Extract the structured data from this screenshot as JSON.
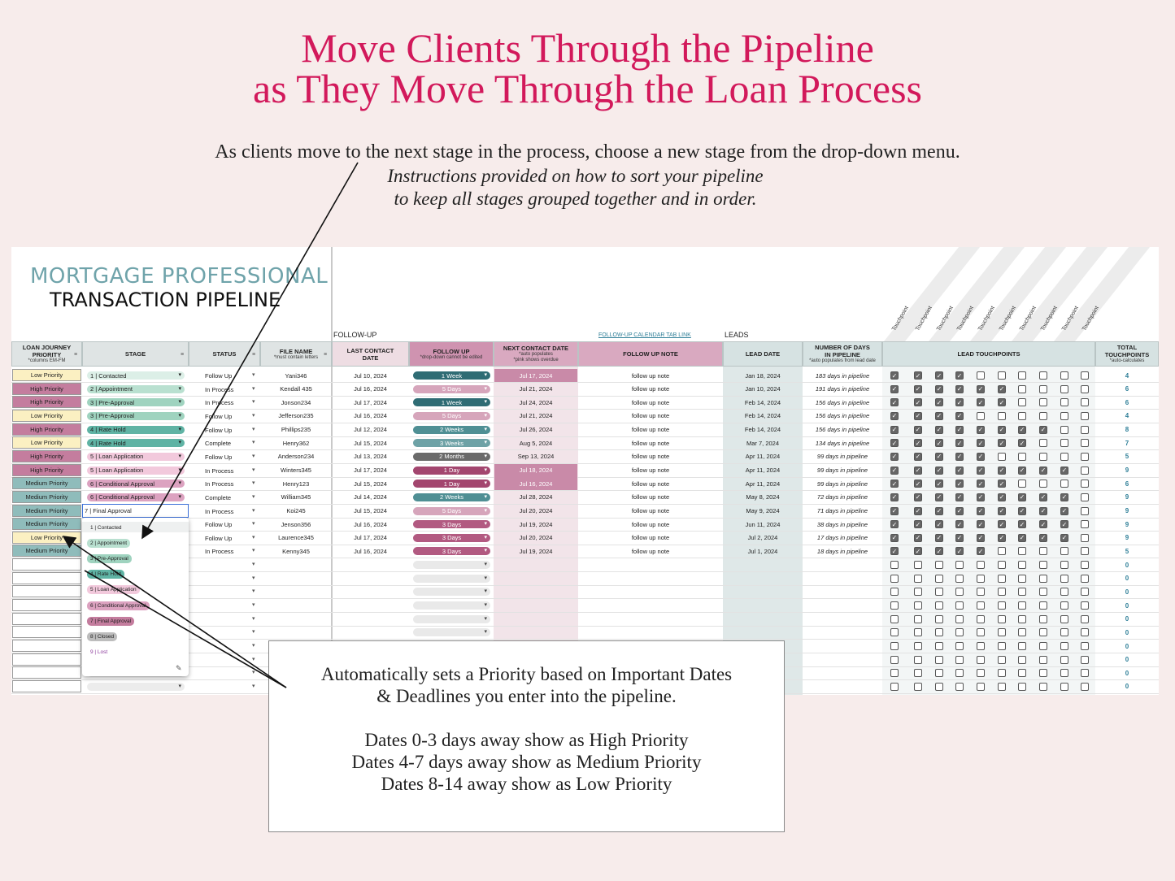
{
  "header": {
    "title_lines": [
      "Move Clients Through the Pipeline",
      "as They Move Through the Loan Process"
    ],
    "intro": "As clients move to the next stage in the process, choose a new stage from the drop-down menu.",
    "intro_italic": [
      "Instructions provided on how to sort your pipeline",
      "to keep all stages grouped together and in order."
    ]
  },
  "sheet": {
    "brand": [
      "MORTGAGE PROFESSIONAL",
      "TRANSACTION PIPELINE"
    ],
    "sections": {
      "follow_up": "FOLLOW-UP",
      "calendar_link": "FOLLOW-UP CALENDAR TAB LINK",
      "leads": "LEADS"
    },
    "touchpoint_labels": [
      "Touchpoint",
      "Touchpoint",
      "Touchpoint",
      "Touchpoint",
      "Touchpoint",
      "Touchpoint",
      "Touchpoint",
      "Touchpoint",
      "Touchpoint",
      "Touchpoint"
    ],
    "columns": [
      {
        "label": "LOAN JOURNEY PRIORITY",
        "sub": [
          "*columns EM-FM"
        ],
        "color": "#dfe4e4"
      },
      {
        "label": "STAGE",
        "sub": [],
        "color": "#dfe4e4"
      },
      {
        "label": "STATUS",
        "sub": [],
        "color": "#dfe4e4"
      },
      {
        "label": "FILE NAME",
        "sub": [
          "*must contain letters"
        ],
        "color": "#dfe4e4"
      },
      {
        "label": "LAST CONTACT DATE",
        "sub": [],
        "color": "#eedde3"
      },
      {
        "label": "FOLLOW UP",
        "sub": [
          "*drop-down cannot be edited"
        ],
        "color": "#cf93b0"
      },
      {
        "label": "NEXT CONTACT DATE",
        "sub": [
          "*auto populates",
          "*pink shows overdue"
        ],
        "color": "#d9a9c0"
      },
      {
        "label": "FOLLOW UP NOTE",
        "sub": [],
        "color": "#d9a9c0"
      },
      {
        "label": "LEAD DATE",
        "sub": [],
        "color": "#d6e2e2"
      },
      {
        "label": "NUMBER OF DAYS IN PIPELINE",
        "sub": [
          "*auto populates from lead date"
        ],
        "color": "#d6e2e2"
      },
      {
        "label": "LEAD TOUCHPOINTS",
        "sub": [],
        "color": "#d6e2e2"
      },
      {
        "label": "TOTAL TOUCHPOINTS",
        "sub": [
          "*auto-calculates"
        ],
        "color": "#d6e2e2"
      }
    ],
    "palette": {
      "priority": {
        "Low Priority": "#fbf0c2",
        "High Priority": "#c47d9e",
        "Medium Priority": "#8fbcbb"
      },
      "stage": {
        "1 | Contacted": "#dcefe7",
        "2 | Appointment": "#b9e0d0",
        "3 | Pre-Approval": "#9fd3bf",
        "4 | Rate Hold": "#5fb3a4",
        "5 | Loan Application": "#f2c9dc",
        "6 | Conditional Approval": "#dca2c0",
        "7 | Final Approval": "#c47d9e",
        "8 | Closed": "#bdbdbd",
        "9 | Lost": "#8b3a9b"
      },
      "follow": {
        "1 Week": "#2f6c74",
        "5 Days": "#d6a5bb",
        "2 Weeks": "#4f8f94",
        "3 Weeks": "#6ea2a6",
        "2 Months": "#6a6a6a",
        "1 Day": "#a3466f",
        "3 Days": "#b25a81"
      }
    },
    "rows": [
      {
        "priority": "Low Priority",
        "stage": "1 | Contacted",
        "status": "Follow Up",
        "file": "Yani346",
        "last": "Jul 10, 2024",
        "follow": "1 Week",
        "next": "Jul 17, 2024",
        "overdue": true,
        "note": "follow up note",
        "lead": "Jan 18, 2024",
        "days": "183 days in pipeline",
        "checks": [
          true,
          true,
          true,
          true,
          false,
          false,
          false,
          false,
          false,
          false
        ],
        "total": 4
      },
      {
        "priority": "High Priority",
        "stage": "2 | Appointment",
        "status": "In Process",
        "file": "Kendall 435",
        "last": "Jul 16, 2024",
        "follow": "5 Days",
        "next": "Jul 21, 2024",
        "overdue": false,
        "note": "follow up note",
        "lead": "Jan 10, 2024",
        "days": "191 days in pipeline",
        "checks": [
          true,
          true,
          true,
          true,
          true,
          true,
          false,
          false,
          false,
          false
        ],
        "total": 6
      },
      {
        "priority": "High Priority",
        "stage": "3 | Pre-Approval",
        "status": "In Process",
        "file": "Jonson234",
        "last": "Jul 17, 2024",
        "follow": "1 Week",
        "next": "Jul 24, 2024",
        "overdue": false,
        "note": "follow up note",
        "lead": "Feb 14, 2024",
        "days": "156 days in pipeline",
        "checks": [
          true,
          true,
          true,
          true,
          true,
          true,
          false,
          false,
          false,
          false
        ],
        "total": 6
      },
      {
        "priority": "Low Priority",
        "stage": "3 | Pre-Approval",
        "status": "Follow Up",
        "file": "Jefferson235",
        "last": "Jul 16, 2024",
        "follow": "5 Days",
        "next": "Jul 21, 2024",
        "overdue": false,
        "note": "follow up note",
        "lead": "Feb 14, 2024",
        "days": "156 days in pipeline",
        "checks": [
          true,
          true,
          true,
          true,
          false,
          false,
          false,
          false,
          false,
          false
        ],
        "total": 4
      },
      {
        "priority": "High Priority",
        "stage": "4 | Rate Hold",
        "status": "Follow Up",
        "file": "Phillips235",
        "last": "Jul 12, 2024",
        "follow": "2 Weeks",
        "next": "Jul 26, 2024",
        "overdue": false,
        "note": "follow up note",
        "lead": "Feb 14, 2024",
        "days": "156 days in pipeline",
        "checks": [
          true,
          true,
          true,
          true,
          true,
          true,
          true,
          true,
          false,
          false
        ],
        "total": 8
      },
      {
        "priority": "Low Priority",
        "stage": "4 | Rate Hold",
        "status": "Complete",
        "file": "Henry362",
        "last": "Jul 15, 2024",
        "follow": "3 Weeks",
        "next": "Aug 5, 2024",
        "overdue": false,
        "note": "follow up note",
        "lead": "Mar 7, 2024",
        "days": "134 days in pipeline",
        "checks": [
          true,
          true,
          true,
          true,
          true,
          true,
          true,
          false,
          false,
          false
        ],
        "total": 7
      },
      {
        "priority": "High Priority",
        "stage": "5 | Loan Application",
        "status": "Follow Up",
        "file": "Anderson234",
        "last": "Jul 13, 2024",
        "follow": "2 Months",
        "next": "Sep 13, 2024",
        "overdue": false,
        "note": "follow up note",
        "lead": "Apr 11, 2024",
        "days": "99 days in pipeline",
        "checks": [
          true,
          true,
          true,
          true,
          true,
          false,
          false,
          false,
          false,
          false
        ],
        "total": 5
      },
      {
        "priority": "High Priority",
        "stage": "5 | Loan Application",
        "status": "In Process",
        "file": "Winters345",
        "last": "Jul 17, 2024",
        "follow": "1 Day",
        "next": "Jul 18, 2024",
        "overdue": true,
        "note": "follow up note",
        "lead": "Apr 11, 2024",
        "days": "99 days in pipeline",
        "checks": [
          true,
          true,
          true,
          true,
          true,
          true,
          true,
          true,
          true,
          false
        ],
        "total": 9
      },
      {
        "priority": "Medium Priority",
        "stage": "6 | Conditional Approval",
        "status": "In Process",
        "file": "Henry123",
        "last": "Jul 15, 2024",
        "follow": "1 Day",
        "next": "Jul 16, 2024",
        "overdue": true,
        "note": "follow up note",
        "lead": "Apr 11, 2024",
        "days": "99 days in pipeline",
        "checks": [
          true,
          true,
          true,
          true,
          true,
          true,
          false,
          false,
          false,
          false
        ],
        "total": 6
      },
      {
        "priority": "Medium Priority",
        "stage": "6 | Conditional Approval",
        "status": "Complete",
        "file": "William345",
        "last": "Jul 14, 2024",
        "follow": "2 Weeks",
        "next": "Jul 28, 2024",
        "overdue": false,
        "note": "follow up note",
        "lead": "May 8, 2024",
        "days": "72 days in pipeline",
        "checks": [
          true,
          true,
          true,
          true,
          true,
          true,
          true,
          true,
          true,
          false
        ],
        "total": 9
      },
      {
        "priority": "Medium Priority",
        "stage": "7 | Final Approval",
        "editing": true,
        "status": "In Process",
        "file": "Koi245",
        "last": "Jul 15, 2024",
        "follow": "5 Days",
        "next": "Jul 20, 2024",
        "overdue": false,
        "note": "follow up note",
        "lead": "May 9, 2024",
        "days": "71 days in pipeline",
        "checks": [
          true,
          true,
          true,
          true,
          true,
          true,
          true,
          true,
          true,
          false
        ],
        "total": 9
      },
      {
        "priority": "Medium Priority",
        "stage": null,
        "status": "Follow Up",
        "file": "Jenson356",
        "last": "Jul 16, 2024",
        "follow": "3 Days",
        "next": "Jul 19, 2024",
        "overdue": false,
        "note": "follow up note",
        "lead": "Jun 11, 2024",
        "days": "38 days in pipeline",
        "checks": [
          true,
          true,
          true,
          true,
          true,
          true,
          true,
          true,
          true,
          false
        ],
        "total": 9
      },
      {
        "priority": "Low Priority",
        "stage": null,
        "status": "Follow Up",
        "file": "Laurence345",
        "last": "Jul 17, 2024",
        "follow": "3 Days",
        "next": "Jul 20, 2024",
        "overdue": false,
        "note": "follow up note",
        "lead": "Jul 2, 2024",
        "days": "17 days in pipeline",
        "checks": [
          true,
          true,
          true,
          true,
          true,
          true,
          true,
          true,
          true,
          false
        ],
        "total": 9
      },
      {
        "priority": "Medium Priority",
        "stage": null,
        "status": "In Process",
        "file": "Kenny345",
        "last": "Jul 16, 2024",
        "follow": "3 Days",
        "next": "Jul 19, 2024",
        "overdue": false,
        "note": "follow up note",
        "lead": "Jul 1, 2024",
        "days": "18 days in pipeline",
        "checks": [
          true,
          true,
          true,
          true,
          true,
          false,
          false,
          false,
          false,
          false
        ],
        "total": 5
      },
      {
        "checks": [
          false,
          false,
          false,
          false,
          false,
          false,
          false,
          false,
          false,
          false
        ],
        "total": 0
      },
      {
        "checks": [
          false,
          false,
          false,
          false,
          false,
          false,
          false,
          false,
          false,
          false
        ],
        "total": 0
      },
      {
        "checks": [
          false,
          false,
          false,
          false,
          false,
          false,
          false,
          false,
          false,
          false
        ],
        "total": 0
      },
      {
        "checks": [
          false,
          false,
          false,
          false,
          false,
          false,
          false,
          false,
          false,
          false
        ],
        "total": 0
      },
      {
        "checks": [
          false,
          false,
          false,
          false,
          false,
          false,
          false,
          false,
          false,
          false
        ],
        "total": 0
      },
      {
        "checks": [
          false,
          false,
          false,
          false,
          false,
          false,
          false,
          false,
          false,
          false
        ],
        "total": 0
      },
      {
        "checks": [
          false,
          false,
          false,
          false,
          false,
          false,
          false,
          false,
          false,
          false
        ],
        "total": 0
      },
      {
        "checks": [
          false,
          false,
          false,
          false,
          false,
          false,
          false,
          false,
          false,
          false
        ],
        "total": 0
      },
      {
        "checks": [
          false,
          false,
          false,
          false,
          false,
          false,
          false,
          false,
          false,
          false
        ],
        "total": 0
      },
      {
        "checks": [
          false,
          false,
          false,
          false,
          false,
          false,
          false,
          false,
          false,
          false
        ],
        "total": 0
      }
    ],
    "dropdown": [
      "1 | Contacted",
      "2 | Appointment",
      "3 | Pre-Approval",
      "4 | Rate Hold",
      "5 | Loan Application",
      "6 | Conditional Approval",
      "7 | Final Approval",
      "8 | Closed",
      "9 | Lost"
    ]
  },
  "callout": [
    [
      "Automatically sets a Priority based on Important Dates",
      "& Deadlines you enter into the pipeline."
    ],
    [
      "Dates 0-3 days away show as High Priority",
      "Dates 4-7 days away show as Medium Priority",
      "Dates 8-14 away show as Low Priority"
    ]
  ]
}
